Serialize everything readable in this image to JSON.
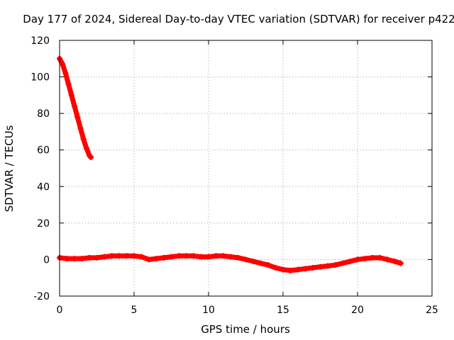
{
  "chart_data": {
    "type": "scatter",
    "title": "Day 177 of 2024, Sidereal Day-to-day VTEC variation (SDTVAR) for receiver p422",
    "xlabel": "GPS time / hours",
    "ylabel": "SDTVAR / TECUs",
    "xlim": [
      0,
      25
    ],
    "ylim": [
      -20,
      120
    ],
    "xticks": [
      0,
      5,
      10,
      15,
      20,
      25
    ],
    "yticks": [
      -20,
      0,
      20,
      40,
      60,
      80,
      100,
      120
    ],
    "xtick_labels": [
      "0",
      "5",
      "10",
      "15",
      "20",
      "25"
    ],
    "ytick_labels": [
      "-20",
      "0",
      "20",
      "40",
      "60",
      "80",
      "100",
      "120"
    ],
    "grid": true,
    "series": [
      {
        "name": "SDTVAR early segment",
        "color": "#ff0000",
        "marker": "plus",
        "x": [
          0.0,
          0.2,
          0.4,
          0.6,
          0.8,
          1.0,
          1.2,
          1.4,
          1.6,
          1.8,
          2.0,
          2.1
        ],
        "y": [
          110,
          107,
          102,
          96,
          90,
          84,
          78,
          72,
          66,
          61,
          57,
          56
        ]
      },
      {
        "name": "SDTVAR main segment",
        "color": "#ff0000",
        "marker": "plus",
        "x": [
          0.0,
          0.5,
          1.0,
          1.5,
          2.0,
          2.5,
          3.0,
          3.5,
          4.0,
          4.5,
          5.0,
          5.5,
          6.0,
          6.5,
          7.0,
          7.5,
          8.0,
          8.5,
          9.0,
          9.5,
          10.0,
          10.5,
          11.0,
          11.5,
          12.0,
          12.5,
          13.0,
          13.5,
          14.0,
          14.5,
          15.0,
          15.5,
          16.0,
          16.5,
          17.0,
          17.5,
          18.0,
          18.5,
          19.0,
          19.5,
          20.0,
          20.5,
          21.0,
          21.5,
          22.0,
          22.5,
          22.9
        ],
        "y": [
          1,
          0.5,
          0.5,
          0.5,
          1,
          1,
          1.5,
          2,
          2,
          2,
          2,
          1.5,
          0,
          0.5,
          1,
          1.5,
          2,
          2,
          2,
          1.5,
          1.5,
          2,
          2,
          1.5,
          1,
          0,
          -1,
          -2,
          -3,
          -4.5,
          -5.5,
          -6,
          -5.5,
          -5,
          -4.5,
          -4,
          -3.5,
          -3,
          -2,
          -1,
          0,
          0.5,
          1,
          1,
          0,
          -1,
          -2
        ]
      }
    ]
  }
}
